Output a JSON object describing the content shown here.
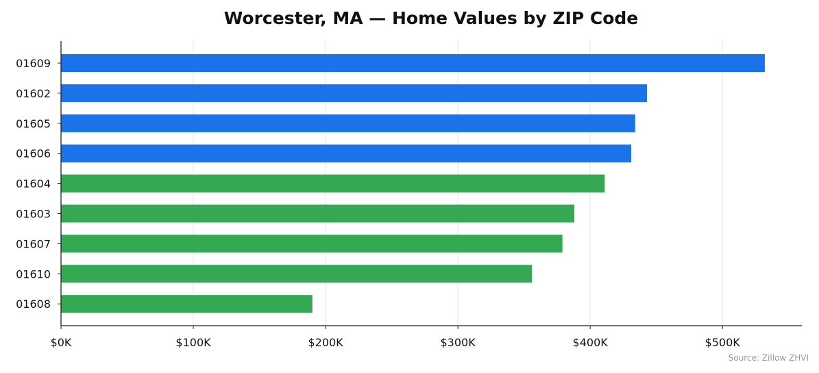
{
  "chart_data": {
    "type": "bar",
    "orientation": "horizontal",
    "title": "Worcester, MA — Home Values by ZIP Code",
    "xlabel": "",
    "ylabel": "",
    "categories": [
      "01609",
      "01602",
      "01605",
      "01606",
      "01604",
      "01603",
      "01607",
      "01610",
      "01608"
    ],
    "values": [
      532000,
      443000,
      434000,
      431000,
      411000,
      388000,
      379000,
      356000,
      190000
    ],
    "bar_colors": [
      "#1a73e8",
      "#1a73e8",
      "#1a73e8",
      "#1a73e8",
      "#34a853",
      "#34a853",
      "#34a853",
      "#34a853",
      "#34a853"
    ],
    "xlim": [
      0,
      560000
    ],
    "xticks": [
      0,
      100000,
      200000,
      300000,
      400000,
      500000
    ],
    "xtick_labels": [
      "$0K",
      "$100K",
      "$200K",
      "$300K",
      "$400K",
      "$500K"
    ],
    "grid": "vertical",
    "source": "Source: Zillow ZHVI"
  }
}
